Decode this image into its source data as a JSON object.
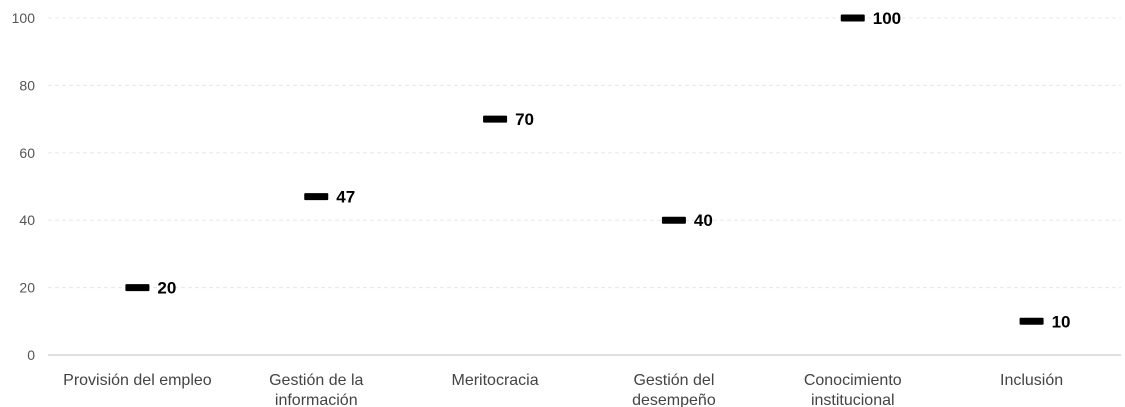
{
  "chart_data": {
    "type": "scatter",
    "title": "",
    "xlabel": "",
    "ylabel": "",
    "categories": [
      [
        "Provisión del empleo"
      ],
      [
        "Gestión de la",
        "información"
      ],
      [
        "Meritocracia"
      ],
      [
        "Gestión del",
        "desempeño"
      ],
      [
        "Conocimiento",
        "institucional"
      ],
      [
        "Inclusión"
      ]
    ],
    "values": [
      20,
      47,
      70,
      40,
      100,
      10
    ],
    "data_labels": [
      "20",
      "47",
      "70",
      "40",
      "100",
      "10"
    ],
    "yticks": [
      0,
      20,
      40,
      60,
      80,
      100
    ],
    "ylim": [
      0,
      100
    ],
    "grid": true,
    "legend": "none",
    "marker": "dash",
    "colors": {
      "marker": "#000000",
      "grid": "#e8e8e8",
      "axis": "#bfbfbf",
      "label": "#000000"
    }
  }
}
